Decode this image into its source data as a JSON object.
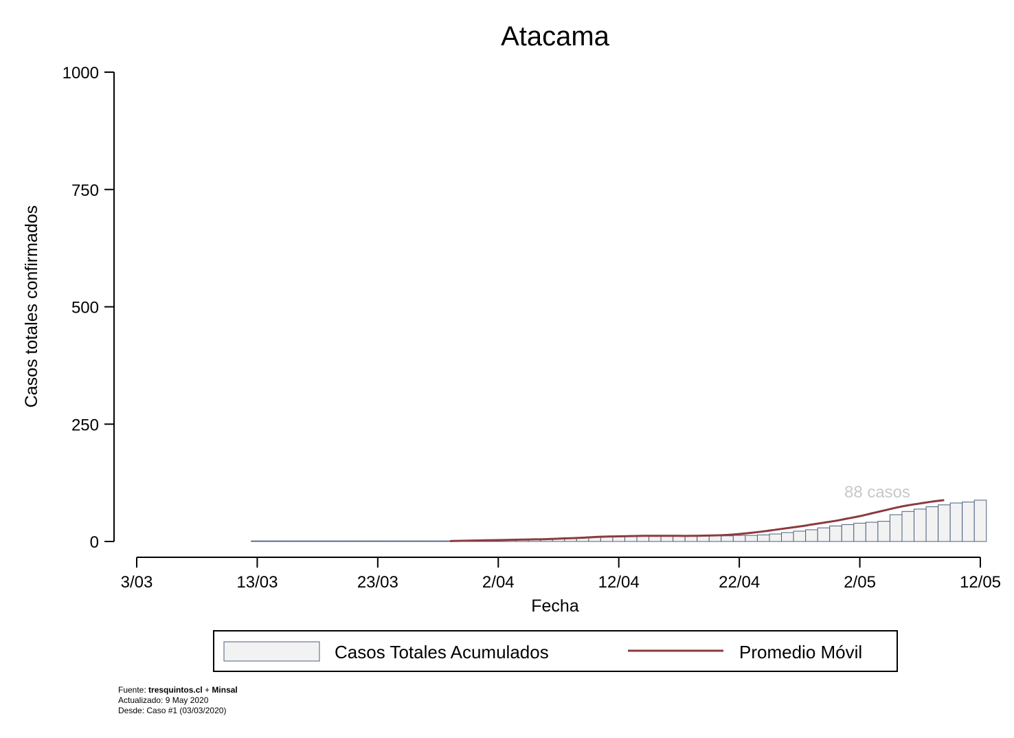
{
  "chart_data": {
    "type": "bar",
    "title": "Atacama",
    "xlabel": "Fecha",
    "ylabel": "Casos totales confirmados",
    "ylim": [
      0,
      1000
    ],
    "yticks": [
      0,
      250,
      500,
      750,
      1000
    ],
    "xticks": [
      "3/03",
      "13/03",
      "23/03",
      "2/04",
      "12/04",
      "22/04",
      "2/05",
      "12/05"
    ],
    "x_start": "3/03",
    "x_end": "12/05",
    "grid": false,
    "annotation": "88 casos",
    "legend_position": "bottom",
    "series": [
      {
        "name": "Casos Totales Acumulados",
        "kind": "bar",
        "start_date": "13/03",
        "values": [
          0,
          0,
          0,
          0,
          0,
          0,
          0,
          0,
          0,
          0,
          0,
          0,
          0,
          0,
          0,
          0,
          1,
          1,
          2,
          2,
          3,
          3,
          4,
          4,
          5,
          6,
          7,
          8,
          10,
          11,
          11,
          12,
          12,
          12,
          12,
          12,
          12,
          12,
          12,
          12,
          13,
          13,
          14,
          16,
          19,
          22,
          25,
          29,
          33,
          36,
          39,
          41,
          43,
          57,
          64,
          69,
          74,
          78,
          82,
          84,
          88
        ],
        "fill": "#f2f2f2",
        "edge": "#4a5f7e"
      },
      {
        "name": "Promedio Móvil",
        "kind": "line",
        "start_date": "29/03",
        "values": [
          1,
          1.5,
          2,
          2.5,
          3,
          3.5,
          4,
          4.5,
          5,
          6,
          7,
          8,
          9.5,
          10.5,
          11,
          11.5,
          12,
          12,
          12,
          12,
          12,
          12.5,
          13,
          14,
          16,
          18.5,
          21.5,
          25,
          28.5,
          32,
          36,
          40,
          44,
          49,
          54,
          60,
          66,
          72,
          77,
          81,
          85,
          88
        ],
        "color": "#8b3a3e"
      }
    ],
    "colors": {
      "bar_fill": "#f2f2f2",
      "bar_edge": "#4a5f7e",
      "line": "#8b3a3e",
      "annotation": "#c8c8c8"
    }
  },
  "source": {
    "prefix": "Fuente: ",
    "site": "tresquintos.cl",
    "plus": " + ",
    "org": "Minsal",
    "updated": "Actualizado: 9 May 2020",
    "since": "Desde: Caso #1  (03/03/2020)"
  }
}
